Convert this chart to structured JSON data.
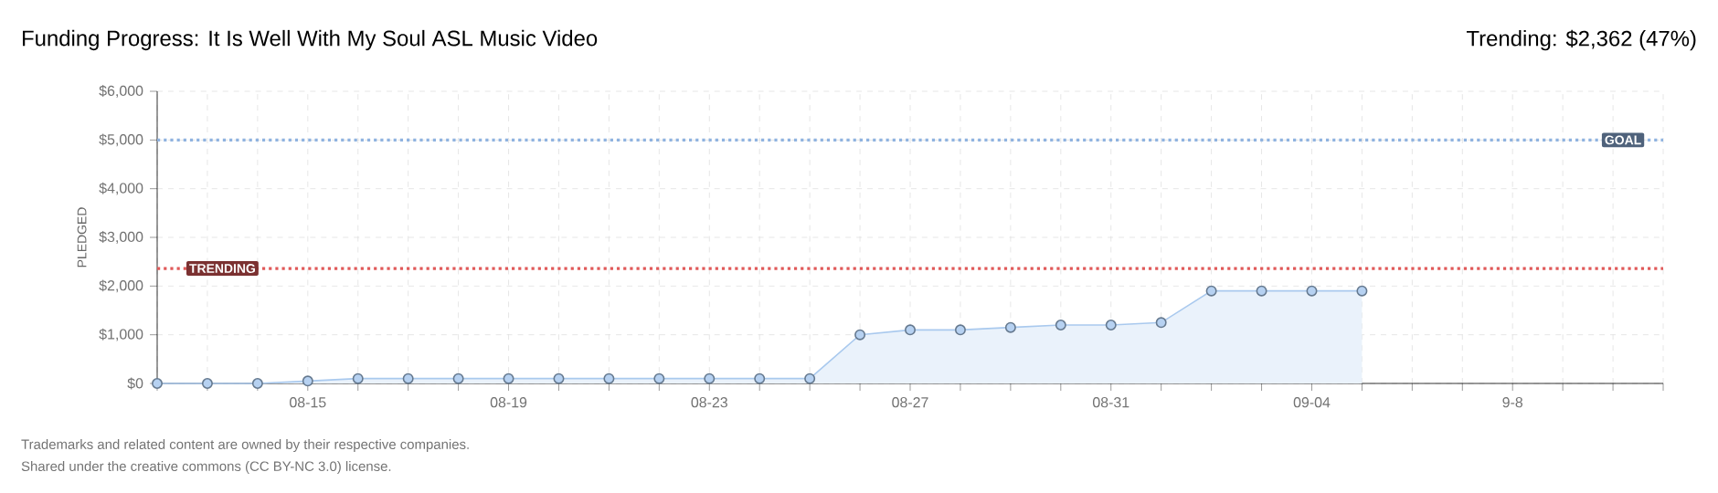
{
  "chart_data": {
    "type": "area",
    "title": "Funding Progress: It Is Well With My Soul ASL Music Video",
    "subtitle": "Trending: $2,362 (47%)",
    "ylabel": "PLEDGED",
    "categories": [
      null,
      null,
      null,
      "08-15",
      null,
      null,
      null,
      "08-19",
      null,
      null,
      null,
      "08-23",
      null,
      null,
      null,
      "08-27",
      null,
      null,
      null,
      "08-31",
      null,
      null,
      null,
      "09-04",
      null,
      null,
      null,
      "9-8",
      null,
      null,
      null
    ],
    "series": [
      {
        "color": "#a9c9ee",
        "values": [
          0,
          0,
          0,
          50,
          100,
          100,
          100,
          100,
          100,
          100,
          100,
          100,
          100,
          100,
          1000,
          1100,
          1100,
          1150,
          1200,
          1200,
          1250,
          1900,
          1900,
          1900,
          1900,
          null,
          null,
          null,
          null,
          null,
          null
        ]
      }
    ],
    "ylim": [
      0,
      6000
    ],
    "yticks": [
      {
        "value": 0,
        "label": "$0"
      },
      {
        "value": 1000,
        "label": "$1,000"
      },
      {
        "value": 2000,
        "label": "$2,000"
      },
      {
        "value": 3000,
        "label": "$3,000"
      },
      {
        "value": 4000,
        "label": "$4,000"
      },
      {
        "value": 5000,
        "label": "$5,000"
      },
      {
        "value": 6000,
        "label": "$6,000"
      }
    ],
    "ref_lines": [
      {
        "axis": "y",
        "value": 5000,
        "label": "GOAL",
        "color": "#8fb3e0",
        "line_style": "dotted"
      },
      {
        "axis": "y",
        "value": 2362,
        "label": "TRENDING",
        "color": "#e05a5a",
        "line_style": "dotted"
      }
    ],
    "grid": true,
    "marker": "circle",
    "annotations": [
      "Trademarks and related content are owned by their respective companies.",
      "Shared under the creative commons (CC BY-NC 3.0) license."
    ]
  }
}
